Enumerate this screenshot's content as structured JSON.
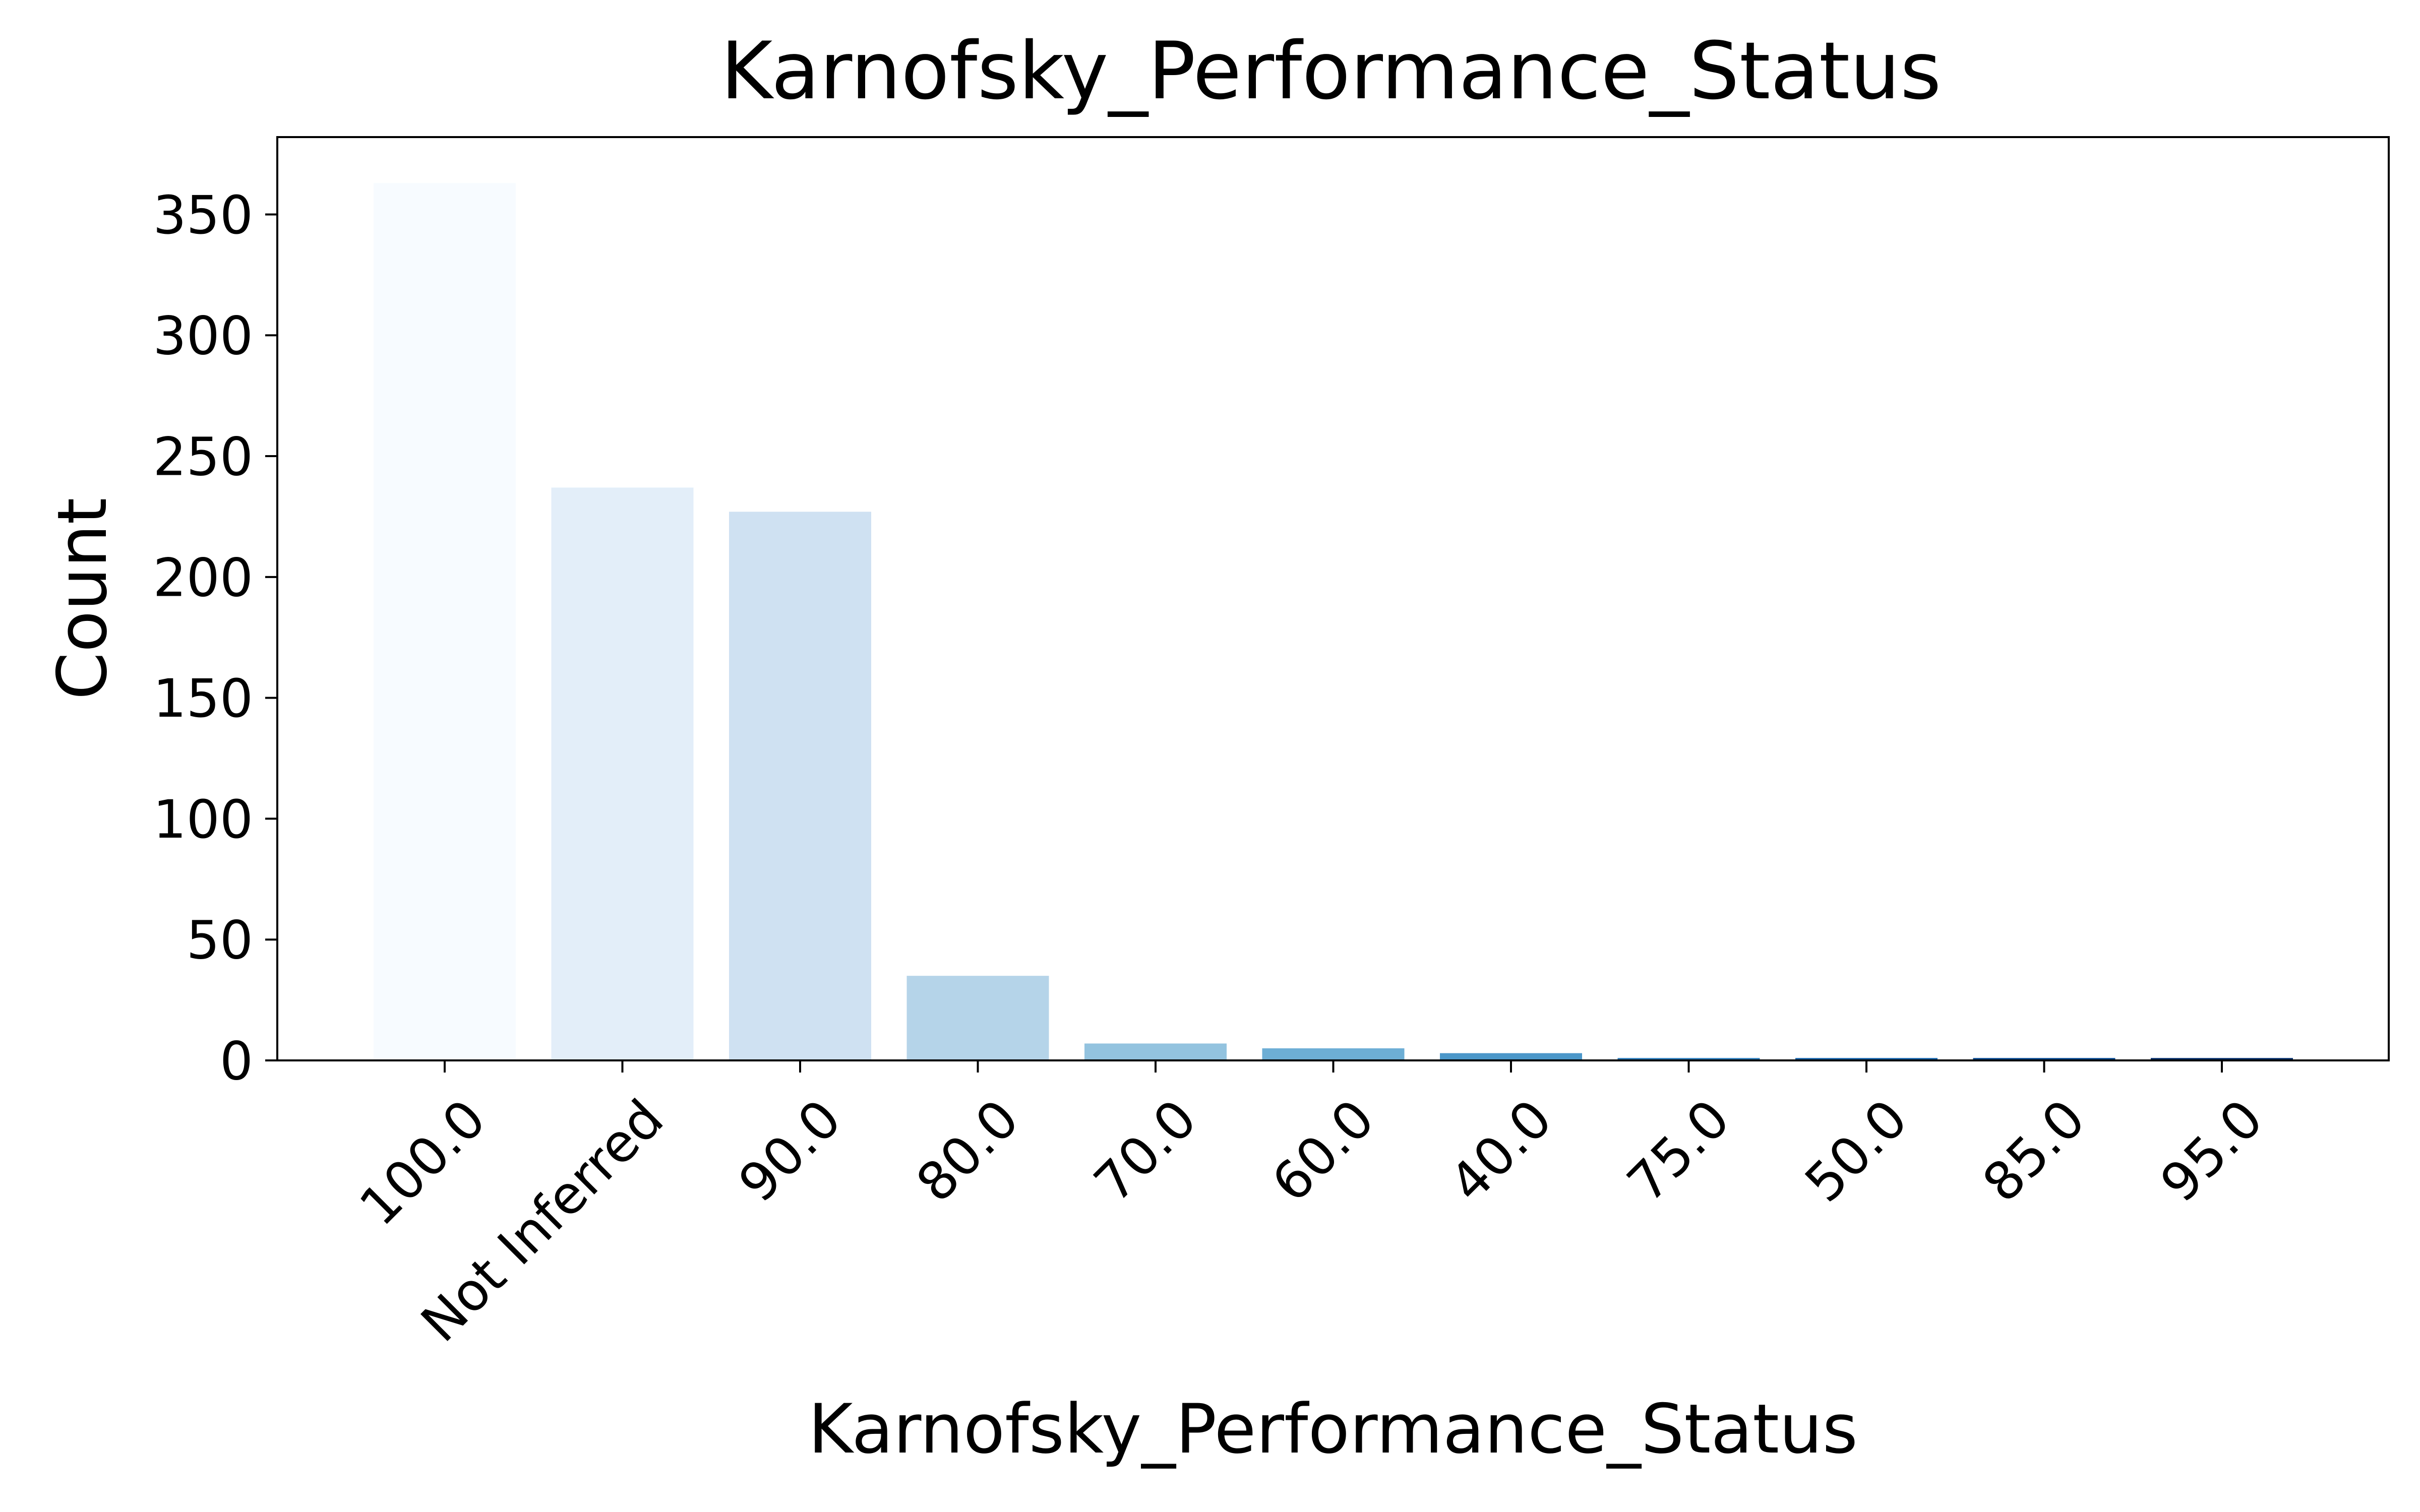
{
  "chart_data": {
    "type": "bar",
    "title": "Karnofsky_Performance_Status",
    "xlabel": "Karnofsky_Performance_Status",
    "ylabel": "Count",
    "categories": [
      "100.0",
      "Not Inferred",
      "90.0",
      "80.0",
      "70.0",
      "60.0",
      "40.0",
      "75.0",
      "50.0",
      "85.0",
      "95.0"
    ],
    "values": [
      363,
      237,
      227,
      35,
      7,
      5,
      3,
      1,
      1,
      1,
      1
    ],
    "colors": [
      "#f7fbff",
      "#e3eef9",
      "#cfe1f2",
      "#b5d4e9",
      "#93c3df",
      "#6daed5",
      "#4b97c9",
      "#2f7ebc",
      "#1864aa",
      "#0a4a90",
      "#08306b"
    ],
    "yticks": [
      0,
      50,
      100,
      150,
      200,
      250,
      300,
      350
    ],
    "ylim": [
      0,
      382
    ],
    "grid": false,
    "legend": "none"
  }
}
